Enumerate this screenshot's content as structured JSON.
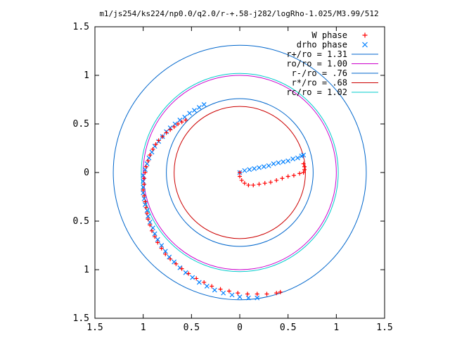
{
  "chart_data": {
    "type": "scatter",
    "title": "m1/js254/ks224/np0.0/q2.0/r-+.58-j282/logRho-1.025/M3.99/512",
    "xlim": [
      -1.5,
      1.5
    ],
    "ylim": [
      -1.5,
      1.5
    ],
    "x_ticks": [
      -1.5,
      -1,
      -0.5,
      0,
      0.5,
      1,
      1.5
    ],
    "y_ticks": [
      -1.5,
      -1,
      -0.5,
      0,
      0.5,
      1,
      1.5
    ],
    "x_tick_labels": [
      "1.5",
      "1",
      "0.5",
      "0",
      "0.5",
      "1",
      "1.5"
    ],
    "y_tick_labels": [
      "1.5",
      "1",
      "0.5",
      "0",
      "0.5",
      "1",
      "1.5"
    ],
    "grid": false,
    "legend_position": "top-right",
    "series": [
      {
        "name": "W phase",
        "kind": "points",
        "marker": "+",
        "color": "#ff0000",
        "points": [
          [
            0.66,
            0.09
          ],
          [
            0.67,
            0.06
          ],
          [
            0.67,
            0.03
          ],
          [
            0.66,
            0.0
          ],
          [
            0.62,
            -0.01
          ],
          [
            0.56,
            -0.03
          ],
          [
            0.5,
            -0.04
          ],
          [
            0.44,
            -0.06
          ],
          [
            0.38,
            -0.08
          ],
          [
            0.32,
            -0.1
          ],
          [
            0.26,
            -0.11
          ],
          [
            0.2,
            -0.12
          ],
          [
            0.14,
            -0.13
          ],
          [
            0.09,
            -0.13
          ],
          [
            0.05,
            -0.11
          ],
          [
            0.02,
            -0.08
          ],
          [
            0.0,
            -0.04
          ],
          [
            0.0,
            0.0
          ],
          [
            -0.56,
            0.54
          ],
          [
            -0.6,
            0.52
          ],
          [
            -0.64,
            0.5
          ],
          [
            -0.68,
            0.47
          ],
          [
            -0.72,
            0.44
          ],
          [
            -0.76,
            0.41
          ],
          [
            -0.8,
            0.37
          ],
          [
            -0.84,
            0.33
          ],
          [
            -0.87,
            0.29
          ],
          [
            -0.9,
            0.24
          ],
          [
            -0.93,
            0.18
          ],
          [
            -0.95,
            0.12
          ],
          [
            -0.97,
            0.06
          ],
          [
            -0.98,
            0.0
          ],
          [
            -0.99,
            -0.06
          ],
          [
            -0.99,
            -0.12
          ],
          [
            -1.0,
            -0.18
          ],
          [
            -0.99,
            -0.24
          ],
          [
            -0.98,
            -0.3
          ],
          [
            -0.97,
            -0.36
          ],
          [
            -0.96,
            -0.42
          ],
          [
            -0.95,
            -0.48
          ],
          [
            -0.93,
            -0.54
          ],
          [
            -0.91,
            -0.6
          ],
          [
            -0.88,
            -0.66
          ],
          [
            -0.85,
            -0.72
          ],
          [
            -0.81,
            -0.78
          ],
          [
            -0.77,
            -0.84
          ],
          [
            -0.72,
            -0.89
          ],
          [
            -0.66,
            -0.94
          ],
          [
            -0.6,
            -0.99
          ],
          [
            -0.53,
            -1.04
          ],
          [
            -0.45,
            -1.09
          ],
          [
            -0.37,
            -1.13
          ],
          [
            -0.29,
            -1.17
          ],
          [
            -0.2,
            -1.2
          ],
          [
            -0.11,
            -1.22
          ],
          [
            -0.02,
            -1.24
          ],
          [
            0.08,
            -1.25
          ],
          [
            0.18,
            -1.25
          ],
          [
            0.28,
            -1.25
          ],
          [
            0.38,
            -1.24
          ],
          [
            0.42,
            -1.23
          ]
        ]
      },
      {
        "name": "drho phase",
        "kind": "points",
        "marker": "x",
        "color": "#0080ff",
        "points": [
          [
            -0.37,
            0.7
          ],
          [
            -0.42,
            0.67
          ],
          [
            -0.47,
            0.64
          ],
          [
            -0.52,
            0.61
          ],
          [
            -0.57,
            0.57
          ],
          [
            -0.62,
            0.54
          ],
          [
            -0.67,
            0.5
          ],
          [
            -0.72,
            0.46
          ],
          [
            -0.76,
            0.42
          ],
          [
            -0.8,
            0.37
          ],
          [
            -0.84,
            0.32
          ],
          [
            -0.88,
            0.27
          ],
          [
            -0.91,
            0.21
          ],
          [
            -0.94,
            0.15
          ],
          [
            -0.96,
            0.09
          ],
          [
            -0.98,
            0.03
          ],
          [
            -1.0,
            -0.03
          ],
          [
            -1.0,
            -0.09
          ],
          [
            -1.0,
            -0.15
          ],
          [
            -1.0,
            -0.21
          ],
          [
            -0.99,
            -0.27
          ],
          [
            -0.98,
            -0.33
          ],
          [
            -0.96,
            -0.39
          ],
          [
            -0.95,
            -0.45
          ],
          [
            -0.93,
            -0.51
          ],
          [
            -0.9,
            -0.57
          ],
          [
            -0.88,
            -0.63
          ],
          [
            -0.85,
            -0.69
          ],
          [
            -0.81,
            -0.75
          ],
          [
            -0.77,
            -0.81
          ],
          [
            -0.73,
            -0.87
          ],
          [
            -0.68,
            -0.92
          ],
          [
            -0.62,
            -0.98
          ],
          [
            -0.56,
            -1.03
          ],
          [
            -0.49,
            -1.08
          ],
          [
            -0.42,
            -1.13
          ],
          [
            -0.34,
            -1.17
          ],
          [
            -0.26,
            -1.21
          ],
          [
            -0.17,
            -1.24
          ],
          [
            -0.08,
            -1.26
          ],
          [
            0.0,
            -1.28
          ],
          [
            0.09,
            -1.29
          ],
          [
            0.18,
            -1.29
          ],
          [
            0.0,
            0.0
          ],
          [
            0.05,
            0.02
          ],
          [
            0.1,
            0.03
          ],
          [
            0.15,
            0.04
          ],
          [
            0.2,
            0.05
          ],
          [
            0.25,
            0.06
          ],
          [
            0.3,
            0.07
          ],
          [
            0.35,
            0.09
          ],
          [
            0.4,
            0.1
          ],
          [
            0.45,
            0.11
          ],
          [
            0.5,
            0.12
          ],
          [
            0.55,
            0.14
          ],
          [
            0.6,
            0.15
          ],
          [
            0.64,
            0.17
          ],
          [
            0.66,
            0.18
          ]
        ]
      },
      {
        "name": "r+/ro = 1.31",
        "kind": "circle",
        "radius": 1.31,
        "color": "#0066cc"
      },
      {
        "name": "ro/ro = 1.00",
        "kind": "circle",
        "radius": 1.0,
        "color": "#cc00cc"
      },
      {
        "name": "r-/ro = .76",
        "kind": "circle",
        "radius": 0.76,
        "color": "#0066cc"
      },
      {
        "name": "r*/ro = .68",
        "kind": "circle",
        "radius": 0.68,
        "color": "#cc0000"
      },
      {
        "name": "rc/ro = 1.02",
        "kind": "circle",
        "radius": 1.02,
        "color": "#00cccc"
      }
    ]
  }
}
